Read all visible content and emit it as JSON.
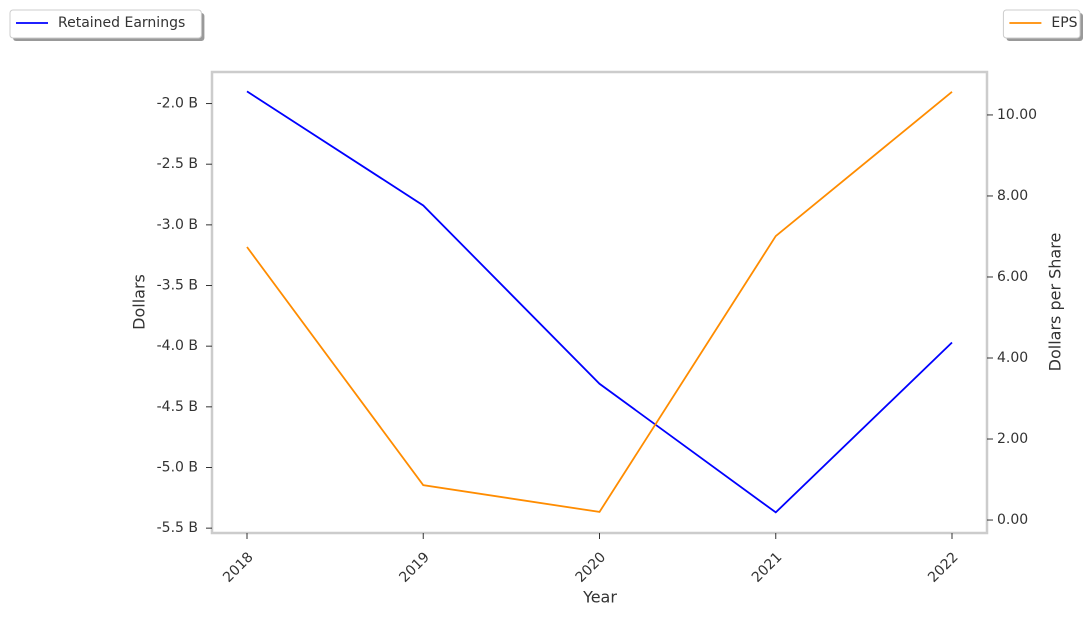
{
  "chart_data": {
    "type": "line",
    "x_label": "Year",
    "y_label": "Dollars",
    "y2_label": "Dollars per Share",
    "categories": [
      "2018",
      "2019",
      "2020",
      "2021",
      "2022"
    ],
    "series": [
      {
        "name": "Retained Earnings",
        "color": "#0000ff",
        "values": [
          -1.9,
          -2.84,
          -4.31,
          -5.37,
          -3.97
        ],
        "legend_corner": "upper left"
      },
      {
        "name": "EPS",
        "color": "#ff8c00",
        "axis": "y2",
        "values": [
          6.74,
          0.86,
          0.2,
          7.01,
          10.57
        ],
        "legend_corner": "upper right"
      }
    ],
    "ylim": [
      -5.54,
      -1.74
    ],
    "yticks": [
      {
        "value": -2.0,
        "label": "-2.0 B"
      },
      {
        "value": -2.5,
        "label": "-2.5 B"
      },
      {
        "value": -3.0,
        "label": "-3.0 B"
      },
      {
        "value": -3.5,
        "label": "-3.5 B"
      },
      {
        "value": -4.0,
        "label": "-4.0 B"
      },
      {
        "value": -4.5,
        "label": "-4.5 B"
      },
      {
        "value": -5.0,
        "label": "-5.0 B"
      },
      {
        "value": -5.5,
        "label": "-5.5 B"
      }
    ],
    "y2lim": [
      -0.32,
      11.06
    ],
    "y2ticks": [
      {
        "value": 0,
        "label": "0.00"
      },
      {
        "value": 2,
        "label": "2.00"
      },
      {
        "value": 4,
        "label": "4.00"
      },
      {
        "value": 6,
        "label": "6.00"
      },
      {
        "value": 8,
        "label": "8.00"
      },
      {
        "value": 10,
        "label": "10.00"
      }
    ],
    "grid": false
  }
}
